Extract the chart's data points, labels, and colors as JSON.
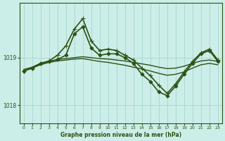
{
  "title": "Graphe pression niveau de la mer (hPa)",
  "bg_color": "#cceee8",
  "grid_color": "#aad8d0",
  "line_color": "#2d5016",
  "xlim": [
    -0.5,
    23.5
  ],
  "ylim": [
    1017.62,
    1020.15
  ],
  "yticks": [
    1018,
    1019
  ],
  "xticks": [
    0,
    1,
    2,
    3,
    4,
    5,
    6,
    7,
    8,
    9,
    10,
    11,
    12,
    13,
    14,
    15,
    16,
    17,
    18,
    19,
    20,
    21,
    22,
    23
  ],
  "figsize": [
    3.2,
    2.0
  ],
  "dpi": 100,
  "series": [
    {
      "x": [
        0,
        1,
        2,
        3,
        4,
        5,
        6,
        7,
        8,
        9,
        10,
        11,
        12,
        13,
        14,
        15,
        16,
        17,
        18,
        19,
        20,
        21,
        22,
        23
      ],
      "y": [
        1018.75,
        1018.8,
        1018.88,
        1018.92,
        1018.96,
        1018.98,
        1019.0,
        1019.02,
        1019.0,
        1018.98,
        1018.97,
        1018.95,
        1018.93,
        1018.9,
        1018.87,
        1018.84,
        1018.8,
        1018.77,
        1018.78,
        1018.82,
        1018.88,
        1018.93,
        1018.95,
        1018.92
      ],
      "marker": null,
      "linewidth": 1.0
    },
    {
      "x": [
        0,
        1,
        2,
        3,
        4,
        5,
        6,
        7,
        8,
        9,
        10,
        11,
        12,
        13,
        14,
        15,
        16,
        17,
        18,
        19,
        20,
        21,
        22,
        23
      ],
      "y": [
        1018.72,
        1018.78,
        1018.85,
        1018.9,
        1018.93,
        1018.95,
        1018.97,
        1018.98,
        1018.95,
        1018.92,
        1018.9,
        1018.87,
        1018.84,
        1018.8,
        1018.76,
        1018.72,
        1018.67,
        1018.63,
        1018.65,
        1018.7,
        1018.78,
        1018.85,
        1018.88,
        1018.85
      ],
      "marker": null,
      "linewidth": 1.0
    },
    {
      "x": [
        0,
        1,
        2,
        3,
        4,
        5,
        6,
        7,
        8,
        9,
        10,
        11,
        12,
        13,
        14,
        15,
        16,
        17,
        18,
        19,
        20,
        21,
        22,
        23
      ],
      "y": [
        1018.72,
        1018.78,
        1018.88,
        1018.92,
        1018.96,
        1019.05,
        1019.5,
        1019.65,
        1019.2,
        1019.05,
        1019.08,
        1019.08,
        1019.0,
        1018.88,
        1018.65,
        1018.5,
        1018.28,
        1018.2,
        1018.4,
        1018.65,
        1018.88,
        1019.08,
        1019.15,
        1018.92
      ],
      "marker": "D",
      "markersize": 2.5,
      "linewidth": 1.2
    },
    {
      "x": [
        0,
        1,
        2,
        3,
        4,
        5,
        6,
        7,
        8,
        9,
        10,
        11,
        12,
        13,
        14,
        15,
        16,
        17,
        18,
        19,
        20,
        21,
        22,
        23
      ],
      "y": [
        1018.72,
        1018.78,
        1018.88,
        1018.93,
        1019.05,
        1019.25,
        1019.6,
        1019.82,
        1019.35,
        1019.15,
        1019.18,
        1019.15,
        1019.05,
        1018.95,
        1018.78,
        1018.62,
        1018.42,
        1018.25,
        1018.45,
        1018.7,
        1018.92,
        1019.1,
        1019.18,
        1018.95
      ],
      "marker": "+",
      "markersize": 5,
      "linewidth": 1.2
    }
  ]
}
